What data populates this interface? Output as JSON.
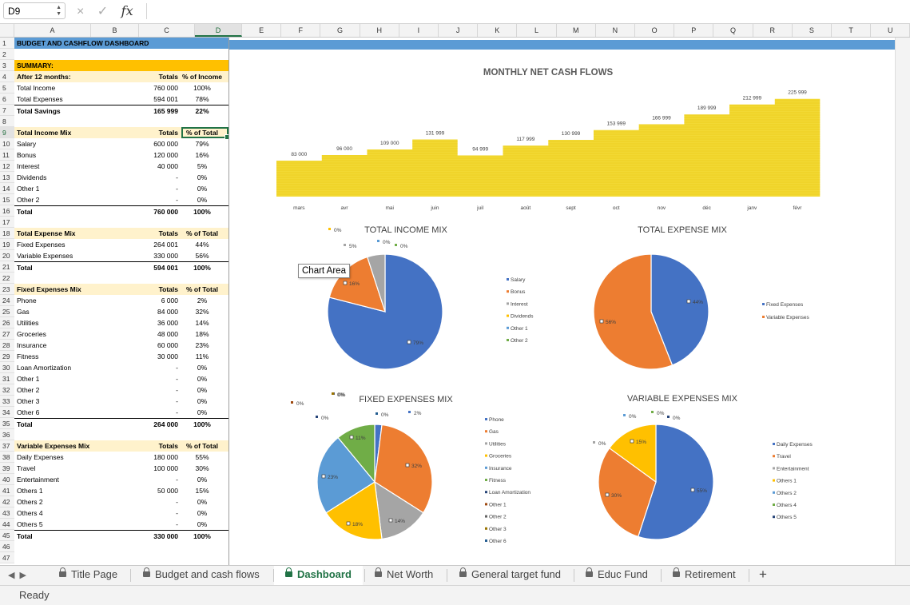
{
  "formula_bar": {
    "name_box": "D9",
    "cancel_icon": "×",
    "enter_icon": "✓",
    "fx_label": "fx"
  },
  "columns": [
    "A",
    "B",
    "C",
    "D",
    "E",
    "F",
    "G",
    "H",
    "I",
    "J",
    "K",
    "L",
    "M",
    "N",
    "O",
    "P",
    "Q",
    "R",
    "S",
    "T",
    "U"
  ],
  "rows": [
    "1",
    "2",
    "3",
    "4",
    "5",
    "6",
    "7",
    "8",
    "9",
    "10",
    "11",
    "12",
    "13",
    "14",
    "15",
    "16",
    "17",
    "18",
    "19",
    "20",
    "21",
    "22",
    "23",
    "24",
    "25",
    "26",
    "27",
    "28",
    "29",
    "30",
    "31",
    "32",
    "33",
    "34",
    "35",
    "36",
    "37",
    "38",
    "39",
    "40",
    "41",
    "42",
    "43",
    "44",
    "45",
    "46",
    "47"
  ],
  "sheet": {
    "title": "BUDGET AND CASHFLOW DASHBOARD",
    "summary_label": "SUMMARY:",
    "rows": [
      {
        "a": "",
        "c": "",
        "d": ""
      },
      {
        "a": "",
        "c": "",
        "d": ""
      },
      {
        "a": "",
        "c": "",
        "d": ""
      },
      {
        "a": "After 12 months:",
        "c": "Totals",
        "d": "% of Income"
      },
      {
        "a": "Total Income",
        "c": "760 000",
        "d": "100%"
      },
      {
        "a": "Total Expenses",
        "c": "594 001",
        "d": "78%"
      },
      {
        "a": "Total Savings",
        "c": "165 999",
        "d": "22%"
      },
      {
        "a": "",
        "c": "",
        "d": ""
      },
      {
        "a": "Total Income Mix",
        "c": "Totals",
        "d": "% of Total"
      },
      {
        "a": "Salary",
        "c": "600 000",
        "d": "79%"
      },
      {
        "a": "Bonus",
        "c": "120 000",
        "d": "16%"
      },
      {
        "a": "Interest",
        "c": "40 000",
        "d": "5%"
      },
      {
        "a": "Dividends",
        "c": "-",
        "d": "0%"
      },
      {
        "a": "Other 1",
        "c": "-",
        "d": "0%"
      },
      {
        "a": "Other 2",
        "c": "-",
        "d": "0%"
      },
      {
        "a": "Total",
        "c": "760 000",
        "d": "100%"
      },
      {
        "a": "",
        "c": "",
        "d": ""
      },
      {
        "a": "Total Expense Mix",
        "c": "Totals",
        "d": "% of Total"
      },
      {
        "a": "Fixed Expenses",
        "c": "264 001",
        "d": "44%"
      },
      {
        "a": "Variable Expenses",
        "c": "330 000",
        "d": "56%"
      },
      {
        "a": "Total",
        "c": "594 001",
        "d": "100%"
      },
      {
        "a": "",
        "c": "",
        "d": ""
      },
      {
        "a": "Fixed Expenses Mix",
        "c": "Totals",
        "d": "% of Total"
      },
      {
        "a": "Phone",
        "c": "6 000",
        "d": "2%"
      },
      {
        "a": "Gas",
        "c": "84 000",
        "d": "32%"
      },
      {
        "a": "Utilities",
        "c": "36 000",
        "d": "14%"
      },
      {
        "a": "Groceries",
        "c": "48 000",
        "d": "18%"
      },
      {
        "a": "Insurance",
        "c": "60 000",
        "d": "23%"
      },
      {
        "a": "Fitness",
        "c": "30 000",
        "d": "11%"
      },
      {
        "a": "Loan Amortization",
        "c": "-",
        "d": "0%"
      },
      {
        "a": "Other 1",
        "c": "-",
        "d": "0%"
      },
      {
        "a": "Other 2",
        "c": "-",
        "d": "0%"
      },
      {
        "a": "Other 3",
        "c": "-",
        "d": "0%"
      },
      {
        "a": "Other 6",
        "c": "-",
        "d": "0%"
      },
      {
        "a": "Total",
        "c": "264 000",
        "d": "100%"
      },
      {
        "a": "",
        "c": "",
        "d": ""
      },
      {
        "a": "Variable Expenses Mix",
        "c": "Totals",
        "d": "% of Total"
      },
      {
        "a": "Daily Expenses",
        "c": "180 000",
        "d": "55%"
      },
      {
        "a": "Travel",
        "c": "100 000",
        "d": "30%"
      },
      {
        "a": "Entertainment",
        "c": "-",
        "d": "0%"
      },
      {
        "a": "Others 1",
        "c": "50 000",
        "d": "15%"
      },
      {
        "a": "Others 2",
        "c": "-",
        "d": "0%"
      },
      {
        "a": "Others 4",
        "c": "-",
        "d": "0%"
      },
      {
        "a": "Others 5",
        "c": "-",
        "d": "0%"
      },
      {
        "a": "Total",
        "c": "330 000",
        "d": "100%"
      },
      {
        "a": "",
        "c": "",
        "d": ""
      },
      {
        "a": "",
        "c": "",
        "d": ""
      }
    ]
  },
  "tooltip": "Chart Area",
  "chart_data": [
    {
      "type": "area",
      "title": "MONTHLY NET CASH FLOWS",
      "categories": [
        "mars",
        "avr",
        "mai",
        "juin",
        "juil",
        "août",
        "sept",
        "oct",
        "nov",
        "déc",
        "janv",
        "févr"
      ],
      "values": [
        83000,
        96000,
        109000,
        131999,
        94999,
        117999,
        130999,
        153999,
        166999,
        189999,
        212999,
        225999
      ],
      "labels": [
        "83 000",
        "96 000",
        "109 000",
        "131 999",
        "94 999",
        "117 999",
        "130 999",
        "153 999",
        "166 999",
        "189 999",
        "212 999",
        "225 999"
      ],
      "color": "#f2d934"
    },
    {
      "type": "pie",
      "title": "TOTAL INCOME MIX",
      "categories": [
        "Salary",
        "Bonus",
        "Interest",
        "Dividends",
        "Other 1",
        "Other 2"
      ],
      "values": [
        79,
        16,
        5,
        0,
        0,
        0
      ],
      "labels": [
        "79%",
        "16%",
        "5%",
        "0%",
        "0%",
        "0%"
      ],
      "colors": [
        "#4472c4",
        "#ed7d31",
        "#a5a5a5",
        "#ffc000",
        "#5b9bd5",
        "#70ad47"
      ]
    },
    {
      "type": "pie",
      "title": "TOTAL EXPENSE MIX",
      "categories": [
        "Fixed Expenses",
        "Variable Expenses"
      ],
      "values": [
        44,
        56
      ],
      "labels": [
        "44%",
        "56%"
      ],
      "colors": [
        "#4472c4",
        "#ed7d31"
      ]
    },
    {
      "type": "pie",
      "title": "FIXED EXPENSES MIX",
      "categories": [
        "Phone",
        "Gas",
        "Utilities",
        "Groceries",
        "Insurance",
        "Fitness",
        "Loan Amortization",
        "Other 1",
        "Other 2",
        "Other 3",
        "Other 6"
      ],
      "values": [
        2,
        32,
        14,
        18,
        23,
        11,
        0,
        0,
        0,
        0,
        0
      ],
      "labels": [
        "2%",
        "32%",
        "14%",
        "18%",
        "23%",
        "11%",
        "0%",
        "0%",
        "0%",
        "0%",
        "0%"
      ],
      "colors": [
        "#4472c4",
        "#ed7d31",
        "#a5a5a5",
        "#ffc000",
        "#5b9bd5",
        "#70ad47",
        "#264478",
        "#9e480e",
        "#636363",
        "#997300",
        "#255e91"
      ]
    },
    {
      "type": "pie",
      "title": "VARIABLE EXPENSES MIX",
      "categories": [
        "Daily Expenses",
        "Travel",
        "Entertainment",
        "Others 1",
        "Others 2",
        "Others 4",
        "Others 5"
      ],
      "values": [
        55,
        30,
        0,
        15,
        0,
        0,
        0
      ],
      "labels": [
        "55%",
        "30%",
        "0%",
        "15%",
        "0%",
        "0%",
        "0%"
      ],
      "colors": [
        "#4472c4",
        "#ed7d31",
        "#a5a5a5",
        "#ffc000",
        "#5b9bd5",
        "#70ad47",
        "#264478"
      ]
    }
  ],
  "tabs": [
    "Title Page",
    "Budget and cash flows",
    "Dashboard",
    "Net Worth",
    "General target fund",
    "Educ Fund",
    "Retirement"
  ],
  "add_sheet": "+",
  "status": "Ready"
}
